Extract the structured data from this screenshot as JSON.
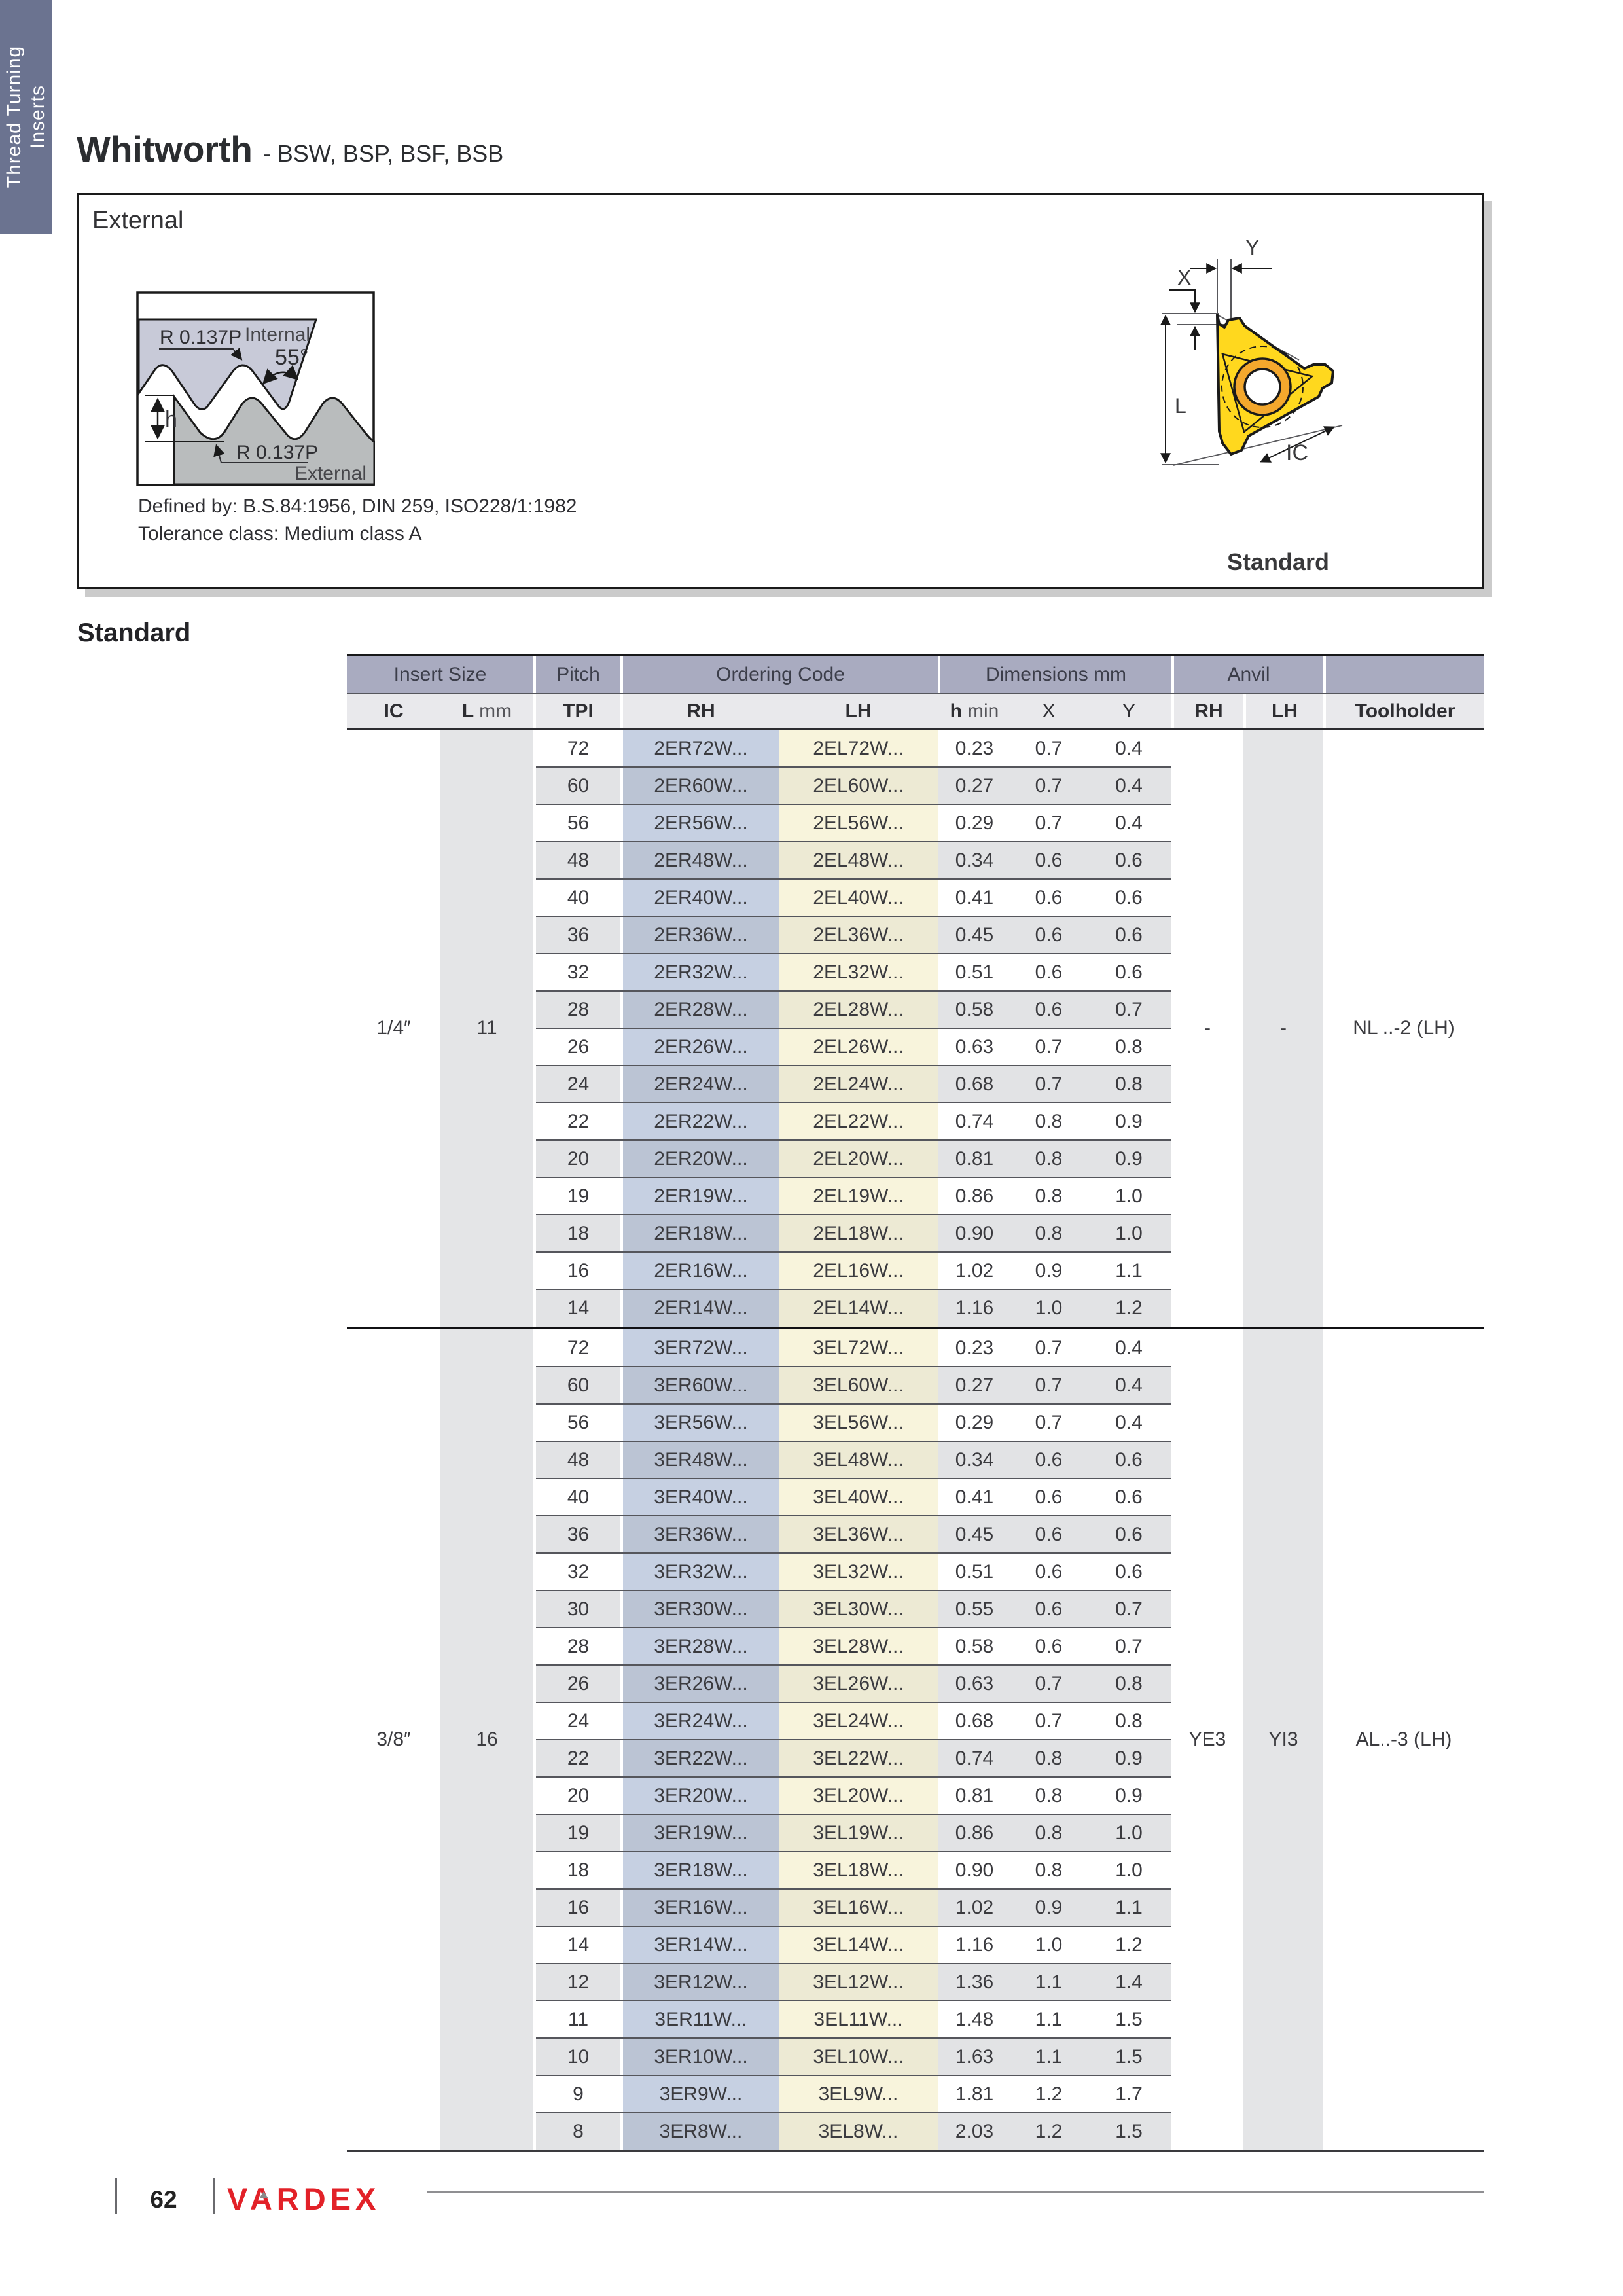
{
  "sidebar_tab": {
    "line1": "Thread Turning",
    "line2": "Inserts"
  },
  "header": {
    "title": "Whitworth",
    "subtitle": "- BSW, BSP, BSF, BSB"
  },
  "external_panel": {
    "label": "External",
    "defined_by": "Defined by: B.S.84:1956, DIN 259, ISO228/1:1982",
    "tolerance": "Tolerance class: Medium class A",
    "profile_labels": {
      "radius_top": "R 0.137P",
      "internal": "Internal",
      "angle": "55°",
      "height": "h",
      "radius_bottom": "R 0.137P",
      "external": "External"
    },
    "insert_labels": {
      "y": "Y",
      "x": "X",
      "l": "L",
      "ic": "IC",
      "caption": "Standard"
    }
  },
  "section_heading": "Standard",
  "table": {
    "group_headers": [
      "Insert Size",
      "Pitch",
      "Ordering Code",
      "Dimensions mm",
      "Anvil",
      ""
    ],
    "columns": {
      "ic": "IC",
      "l_bold": "L",
      "l_unit": "mm",
      "tpi": "TPI",
      "rh": "RH",
      "lh": "LH",
      "h_bold": "h",
      "h_unit": "min",
      "x": "X",
      "y": "Y",
      "anvil_rh": "RH",
      "anvil_lh": "LH",
      "toolholder": "Toolholder"
    },
    "sections": [
      {
        "ic": "1/4″",
        "l": "11",
        "anvil_rh": "-",
        "anvil_lh": "-",
        "toolholder": "NL ..-2 (LH)",
        "rows": [
          [
            "72",
            "2ER72W...",
            "2EL72W...",
            "0.23",
            "0.7",
            "0.4"
          ],
          [
            "60",
            "2ER60W...",
            "2EL60W...",
            "0.27",
            "0.7",
            "0.4"
          ],
          [
            "56",
            "2ER56W...",
            "2EL56W...",
            "0.29",
            "0.7",
            "0.4"
          ],
          [
            "48",
            "2ER48W...",
            "2EL48W...",
            "0.34",
            "0.6",
            "0.6"
          ],
          [
            "40",
            "2ER40W...",
            "2EL40W...",
            "0.41",
            "0.6",
            "0.6"
          ],
          [
            "36",
            "2ER36W...",
            "2EL36W...",
            "0.45",
            "0.6",
            "0.6"
          ],
          [
            "32",
            "2ER32W...",
            "2EL32W...",
            "0.51",
            "0.6",
            "0.6"
          ],
          [
            "28",
            "2ER28W...",
            "2EL28W...",
            "0.58",
            "0.6",
            "0.7"
          ],
          [
            "26",
            "2ER26W...",
            "2EL26W...",
            "0.63",
            "0.7",
            "0.8"
          ],
          [
            "24",
            "2ER24W...",
            "2EL24W...",
            "0.68",
            "0.7",
            "0.8"
          ],
          [
            "22",
            "2ER22W...",
            "2EL22W...",
            "0.74",
            "0.8",
            "0.9"
          ],
          [
            "20",
            "2ER20W...",
            "2EL20W...",
            "0.81",
            "0.8",
            "0.9"
          ],
          [
            "19",
            "2ER19W...",
            "2EL19W...",
            "0.86",
            "0.8",
            "1.0"
          ],
          [
            "18",
            "2ER18W...",
            "2EL18W...",
            "0.90",
            "0.8",
            "1.0"
          ],
          [
            "16",
            "2ER16W...",
            "2EL16W...",
            "1.02",
            "0.9",
            "1.1"
          ],
          [
            "14",
            "2ER14W...",
            "2EL14W...",
            "1.16",
            "1.0",
            "1.2"
          ]
        ]
      },
      {
        "ic": "3/8″",
        "l": "16",
        "anvil_rh": "YE3",
        "anvil_lh": "YI3",
        "toolholder": "AL..-3 (LH)",
        "rows": [
          [
            "72",
            "3ER72W...",
            "3EL72W...",
            "0.23",
            "0.7",
            "0.4"
          ],
          [
            "60",
            "3ER60W...",
            "3EL60W...",
            "0.27",
            "0.7",
            "0.4"
          ],
          [
            "56",
            "3ER56W...",
            "3EL56W...",
            "0.29",
            "0.7",
            "0.4"
          ],
          [
            "48",
            "3ER48W...",
            "3EL48W...",
            "0.34",
            "0.6",
            "0.6"
          ],
          [
            "40",
            "3ER40W...",
            "3EL40W...",
            "0.41",
            "0.6",
            "0.6"
          ],
          [
            "36",
            "3ER36W...",
            "3EL36W...",
            "0.45",
            "0.6",
            "0.6"
          ],
          [
            "32",
            "3ER32W...",
            "3EL32W...",
            "0.51",
            "0.6",
            "0.6"
          ],
          [
            "30",
            "3ER30W...",
            "3EL30W...",
            "0.55",
            "0.6",
            "0.7"
          ],
          [
            "28",
            "3ER28W...",
            "3EL28W...",
            "0.58",
            "0.6",
            "0.7"
          ],
          [
            "26",
            "3ER26W...",
            "3EL26W...",
            "0.63",
            "0.7",
            "0.8"
          ],
          [
            "24",
            "3ER24W...",
            "3EL24W...",
            "0.68",
            "0.7",
            "0.8"
          ],
          [
            "22",
            "3ER22W...",
            "3EL22W...",
            "0.74",
            "0.8",
            "0.9"
          ],
          [
            "20",
            "3ER20W...",
            "3EL20W...",
            "0.81",
            "0.8",
            "0.9"
          ],
          [
            "19",
            "3ER19W...",
            "3EL19W...",
            "0.86",
            "0.8",
            "1.0"
          ],
          [
            "18",
            "3ER18W...",
            "3EL18W...",
            "0.90",
            "0.8",
            "1.0"
          ],
          [
            "16",
            "3ER16W...",
            "3EL16W...",
            "1.02",
            "0.9",
            "1.1"
          ],
          [
            "14",
            "3ER14W...",
            "3EL14W...",
            "1.16",
            "1.0",
            "1.2"
          ],
          [
            "12",
            "3ER12W...",
            "3EL12W...",
            "1.36",
            "1.1",
            "1.4"
          ],
          [
            "11",
            "3ER11W...",
            "3EL11W...",
            "1.48",
            "1.1",
            "1.5"
          ],
          [
            "10",
            "3ER10W...",
            "3EL10W...",
            "1.63",
            "1.1",
            "1.5"
          ],
          [
            "9",
            "3ER9W...",
            "3EL9W...",
            "1.81",
            "1.2",
            "1.7"
          ],
          [
            "8",
            "3ER8W...",
            "3EL8W...",
            "2.03",
            "1.2",
            "1.5"
          ]
        ]
      }
    ]
  },
  "footer": {
    "page": "62",
    "logo": "VARDEX"
  },
  "colors": {
    "sidebar": "#6b7390",
    "group_header": "#a9abc0",
    "sub_header": "#e9e9ec",
    "row_gray": "#e2e3e5",
    "stripe_gray": "#e4e5e7",
    "rh_blue": "#c6d0e2",
    "lh_cream": "#f8f4dc",
    "internal_fill": "#c8cad8",
    "external_fill": "#b9bcbd",
    "insert_yellow": "#ffd81e",
    "insert_orange": "#f4a82d",
    "brand_red": "#e22128"
  }
}
